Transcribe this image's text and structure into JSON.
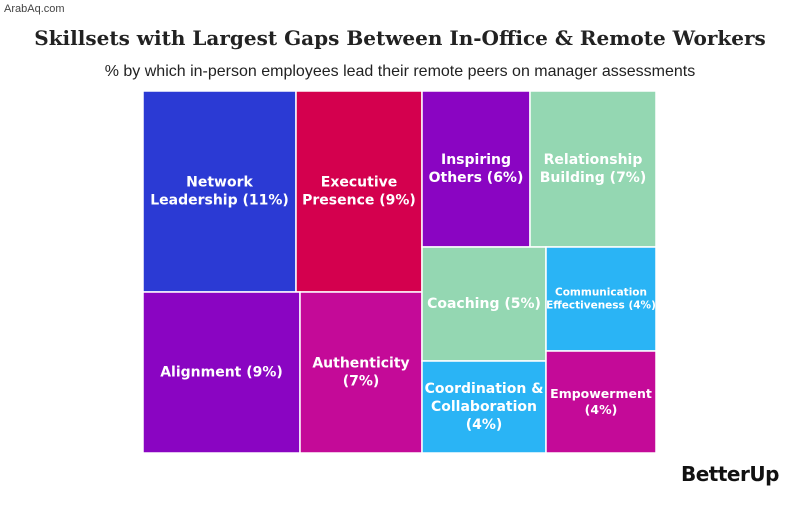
{
  "watermark": "ArabAq.com",
  "brand": "BetterUp",
  "chart_data": {
    "type": "treemap",
    "title": "Skillsets with Largest Gaps Between In-Office & Remote Workers",
    "subtitle": "% by which in-person employees lead their remote peers on manager assessments",
    "unit": "%",
    "tiles": [
      {
        "name": "Network Leadership",
        "value": 11,
        "label": "Network Leadership (11%)",
        "color": "#2b3ad4"
      },
      {
        "name": "Executive Presence",
        "value": 9,
        "label": "Executive Presence (9%)",
        "color": "#d4004e"
      },
      {
        "name": "Inspiring Others",
        "value": 6,
        "label": "Inspiring Others (6%)",
        "color": "#8a05c2"
      },
      {
        "name": "Relationship Building",
        "value": 7,
        "label": "Relationship Building (7%)",
        "color": "#94d7b2"
      },
      {
        "name": "Alignment",
        "value": 9,
        "label": "Alignment (9%)",
        "color": "#8a05c2"
      },
      {
        "name": "Authenticity",
        "value": 7,
        "label": "Authenticity (7%)",
        "color": "#c40a98"
      },
      {
        "name": "Coaching",
        "value": 5,
        "label": "Coaching (5%)",
        "color": "#94d7b2"
      },
      {
        "name": "Communication Effectiveness",
        "value": 4,
        "label": "Communication Effectiveness (4%)",
        "color": "#2ab4f5"
      },
      {
        "name": "Coordination & Collaboration",
        "value": 4,
        "label": "Coordination & Collaboration (4%)",
        "color": "#2ab4f5"
      },
      {
        "name": "Empowerment",
        "value": 4,
        "label": "Empowerment (4%)",
        "color": "#c40a98"
      }
    ]
  }
}
